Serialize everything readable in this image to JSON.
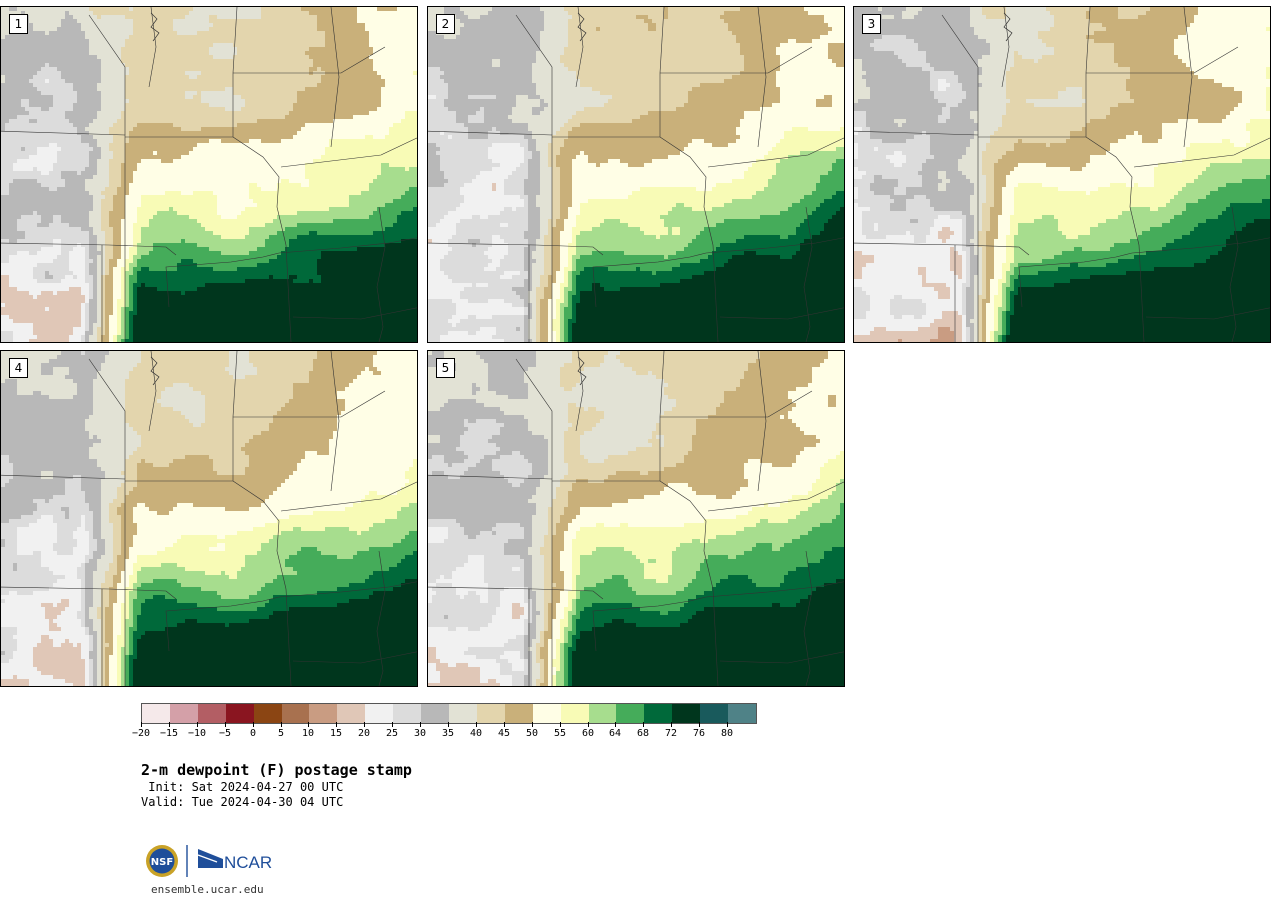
{
  "panels": [
    {
      "label": "1",
      "seed": 11
    },
    {
      "label": "2",
      "seed": 23
    },
    {
      "label": "3",
      "seed": 37
    },
    {
      "label": "4",
      "seed": 41
    },
    {
      "label": "5",
      "seed": 59
    }
  ],
  "colorbar": {
    "colors": [
      "#f5e9ea",
      "#d4a0a8",
      "#b35e64",
      "#8a1520",
      "#8b4513",
      "#a8714f",
      "#c99c82",
      "#e0c7b7",
      "#f1f1f1",
      "#dcdcdc",
      "#b8b8b8",
      "#e2e2d5",
      "#e3d5ad",
      "#c9b07a",
      "#fffee6",
      "#f8fbb6",
      "#a7dd8e",
      "#45ac5a",
      "#00693a",
      "#00361d",
      "#195a5c",
      "#4f8287"
    ],
    "tick_labels": [
      "-20",
      "-15",
      "-10",
      "-5",
      "0",
      "5",
      "10",
      "15",
      "20",
      "25",
      "30",
      "35",
      "40",
      "45",
      "50",
      "55",
      "60",
      "64",
      "68",
      "72",
      "76",
      "80"
    ]
  },
  "title": "2-m dewpoint (F) postage stamp",
  "init": " Init: Sat 2024-04-27 00 UTC",
  "valid": "Valid: Tue 2024-04-30 04 UTC",
  "logos": {
    "nsf": "NSF",
    "ncar": "NCAR"
  },
  "website": "ensemble.ucar.edu"
}
